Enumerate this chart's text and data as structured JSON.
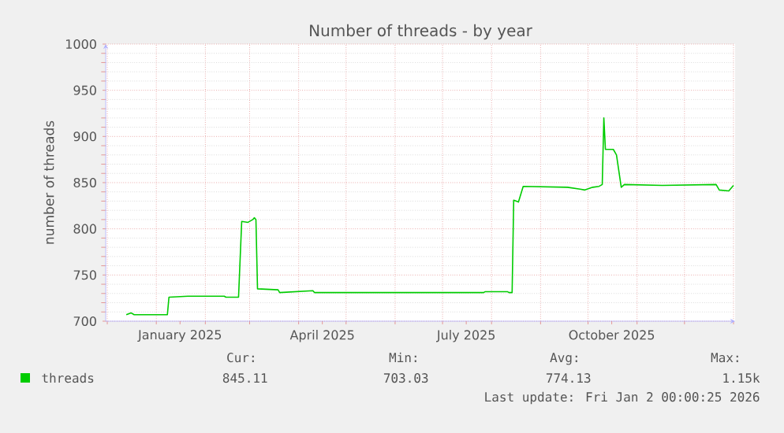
{
  "chart_data": {
    "type": "line",
    "title": "Number of threads - by year",
    "ylabel": "number of threads",
    "xlim": [
      "2024-11-30",
      "2026-01-02"
    ],
    "ylim": [
      700,
      1000
    ],
    "yticks": [
      700,
      750,
      800,
      850,
      900,
      950,
      1000
    ],
    "xticks": [
      {
        "value": "2024-12-01",
        "label": null
      },
      {
        "value": "2025-01-01",
        "label": null
      },
      {
        "value": "2025-01-16",
        "label": "January 2025"
      },
      {
        "value": "2025-02-01",
        "label": null
      },
      {
        "value": "2025-03-01",
        "label": null
      },
      {
        "value": "2025-04-01",
        "label": null
      },
      {
        "value": "2025-04-16",
        "label": "April 2025"
      },
      {
        "value": "2025-05-01",
        "label": null
      },
      {
        "value": "2025-06-01",
        "label": null
      },
      {
        "value": "2025-07-01",
        "label": null
      },
      {
        "value": "2025-07-16",
        "label": "July 2025"
      },
      {
        "value": "2025-08-01",
        "label": null
      },
      {
        "value": "2025-09-01",
        "label": null
      },
      {
        "value": "2025-10-01",
        "label": null
      },
      {
        "value": "2025-10-16",
        "label": "October 2025"
      },
      {
        "value": "2025-11-01",
        "label": null
      },
      {
        "value": "2025-12-01",
        "label": null
      },
      {
        "value": "2026-01-01",
        "label": null
      }
    ],
    "x": [
      "2024-12-13",
      "2024-12-16",
      "2024-12-18",
      "2025-01-08",
      "2025-01-09",
      "2025-01-21",
      "2025-02-13",
      "2025-02-14",
      "2025-02-22",
      "2025-02-24",
      "2025-02-28",
      "2025-03-03",
      "2025-03-04",
      "2025-03-05",
      "2025-03-06",
      "2025-03-19",
      "2025-03-20",
      "2025-04-10",
      "2025-04-11",
      "2025-07-27",
      "2025-07-28",
      "2025-08-11",
      "2025-08-12",
      "2025-08-14",
      "2025-08-15",
      "2025-08-18",
      "2025-08-21",
      "2025-09-18",
      "2025-09-26",
      "2025-09-29",
      "2025-10-04",
      "2025-10-08",
      "2025-10-10",
      "2025-10-11",
      "2025-10-12",
      "2025-10-17",
      "2025-10-19",
      "2025-10-22",
      "2025-10-24",
      "2025-11-17",
      "2025-12-21",
      "2025-12-23",
      "2025-12-29",
      "2026-01-01"
    ],
    "series": [
      {
        "name": "threads",
        "color": "#00cc00",
        "values": [
          707,
          709,
          707,
          707,
          726,
          727,
          727,
          726,
          726,
          808,
          807,
          810,
          812,
          810,
          735,
          734,
          731,
          733,
          731,
          731,
          732,
          732,
          731,
          731,
          831,
          829,
          846,
          845,
          843,
          842,
          845,
          846,
          848,
          920,
          886,
          886,
          880,
          845,
          848,
          847,
          848,
          842,
          841,
          847
        ]
      }
    ],
    "grid": true,
    "legend": "bottom",
    "marker": "none",
    "line_style": "solid",
    "annotations": [
      "Cur:",
      "Min:",
      "Avg:",
      "Max:",
      "845.11",
      "703.03",
      "774.13",
      "1.15k",
      "Last update: Fri Jan  2 00:00:25 2026"
    ]
  }
}
